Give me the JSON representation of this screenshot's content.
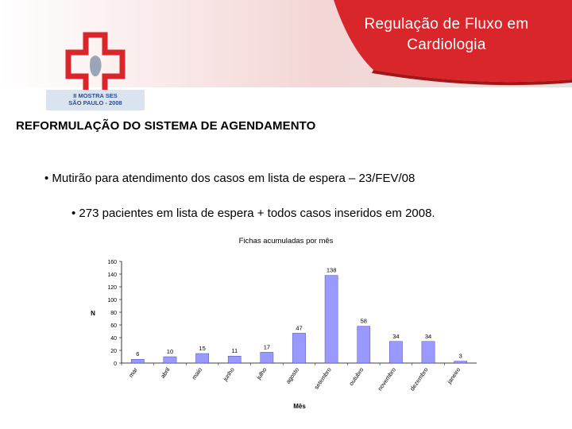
{
  "header": {
    "title_line1": "Regulação de Fluxo em",
    "title_line2": "Cardiologia",
    "colors": {
      "red": "#d9262b",
      "dark_red": "#a31619"
    }
  },
  "logo": {
    "caption_line1": "II MOSTRA SES",
    "caption_line2": "SÃO PAULO - 2008"
  },
  "section": {
    "heading": "REFORMULAÇÃO DO SISTEMA DE AGENDAMENTO",
    "bullet1": "• Mutirão para atendimento dos casos em lista de espera – 23/FEV/08",
    "bullet2": "• 273 pacientes em lista de espera + todos casos inseridos em 2008."
  },
  "chart_data": {
    "type": "bar",
    "title": "Fichas acumuladas por mês",
    "xlabel": "Mês",
    "ylabel": "N",
    "categories": [
      "mar",
      "abril",
      "maio",
      "junho",
      "julho",
      "agosto",
      "setembro",
      "outubro",
      "novembro",
      "dezembro",
      "janeiro"
    ],
    "values": [
      6,
      10,
      15,
      11,
      17,
      47,
      138,
      58,
      34,
      34,
      3
    ],
    "ylim": [
      0,
      160
    ],
    "yticks": [
      0,
      20,
      40,
      60,
      80,
      100,
      120,
      140,
      160
    ],
    "bar_color": "#9999ff",
    "grid": false
  }
}
